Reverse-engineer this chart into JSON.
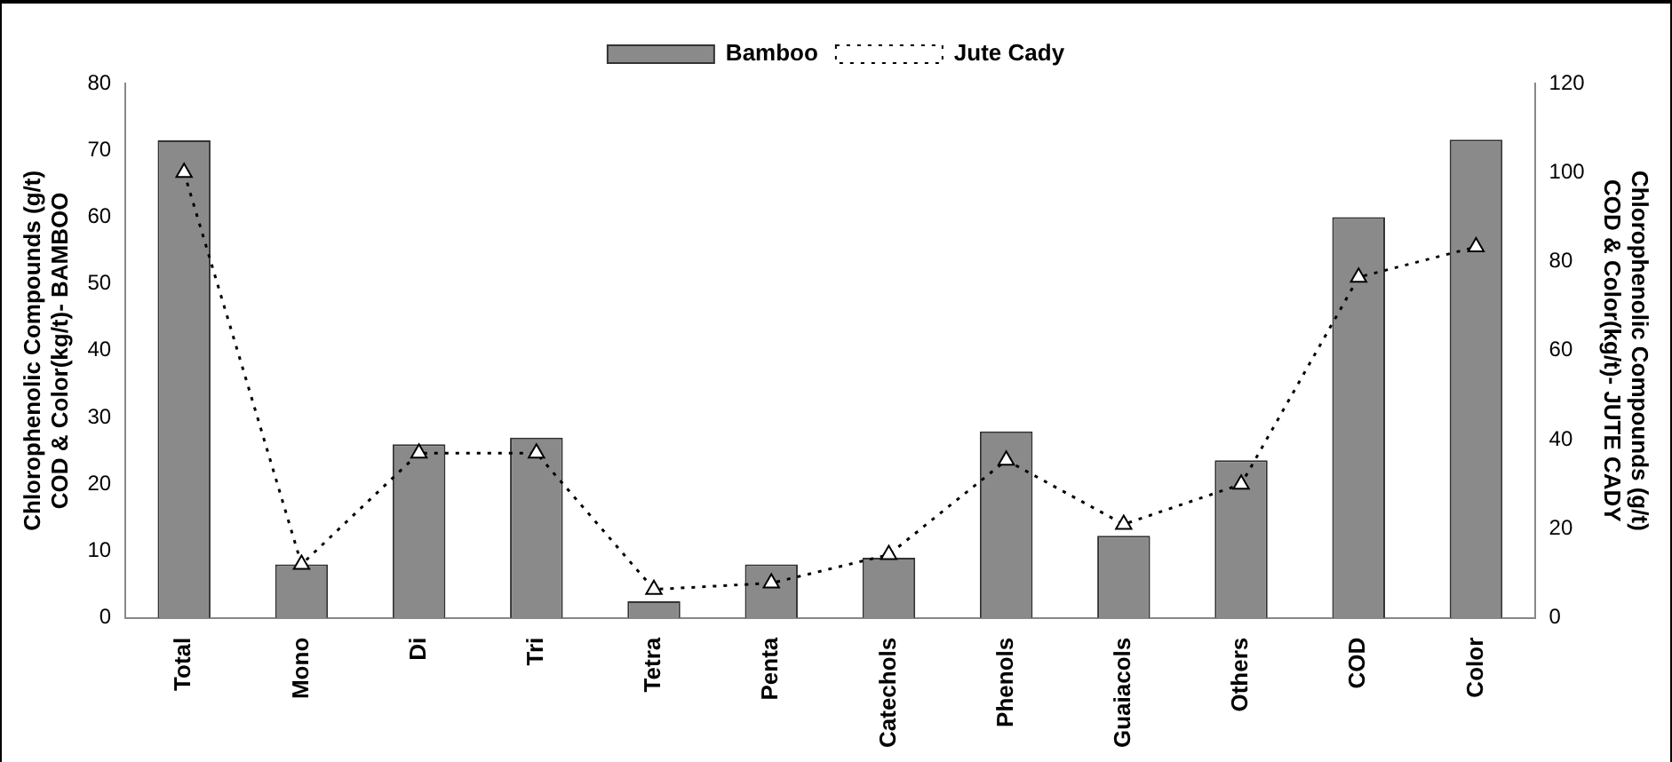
{
  "chart_data": {
    "type": "bar",
    "ylabel": "Chlorophenolic Compounds (g/t) COD & Color(kg/t)- BAMBOO",
    "y2label": "Chlorophenolic Compounds (g/t) COD & Color(kg/t)- JUTE CADY",
    "categories": [
      "Total",
      "Mono",
      "Di",
      "Tri",
      "Tetra",
      "Penta",
      "Catechols",
      "Phenols",
      "Guaiacols",
      "Others",
      "COD",
      "Color"
    ],
    "series": [
      {
        "name": "Bamboo",
        "color": "#8a8a8a",
        "values": [
          71.5,
          8,
          26,
          27,
          2.5,
          8,
          9,
          27.9,
          12.3,
          23.6,
          60,
          71.6
        ]
      },
      {
        "name": "Jute Cady",
        "type": "line",
        "axis": "y2",
        "color": "#000000",
        "marker": "triangle",
        "line_style": "dotted",
        "values": [
          100,
          12,
          37,
          37,
          6.4,
          7.8,
          14.2,
          35.4,
          21,
          30,
          76.5,
          83.3
        ]
      }
    ],
    "ylim": [
      0,
      80
    ],
    "yticks": [
      0,
      10,
      20,
      30,
      40,
      50,
      60,
      70,
      80
    ],
    "y2lim": [
      0,
      120
    ],
    "y2ticks": [
      0,
      20,
      40,
      60,
      80,
      100,
      120
    ],
    "grid": false,
    "legend": "top"
  }
}
